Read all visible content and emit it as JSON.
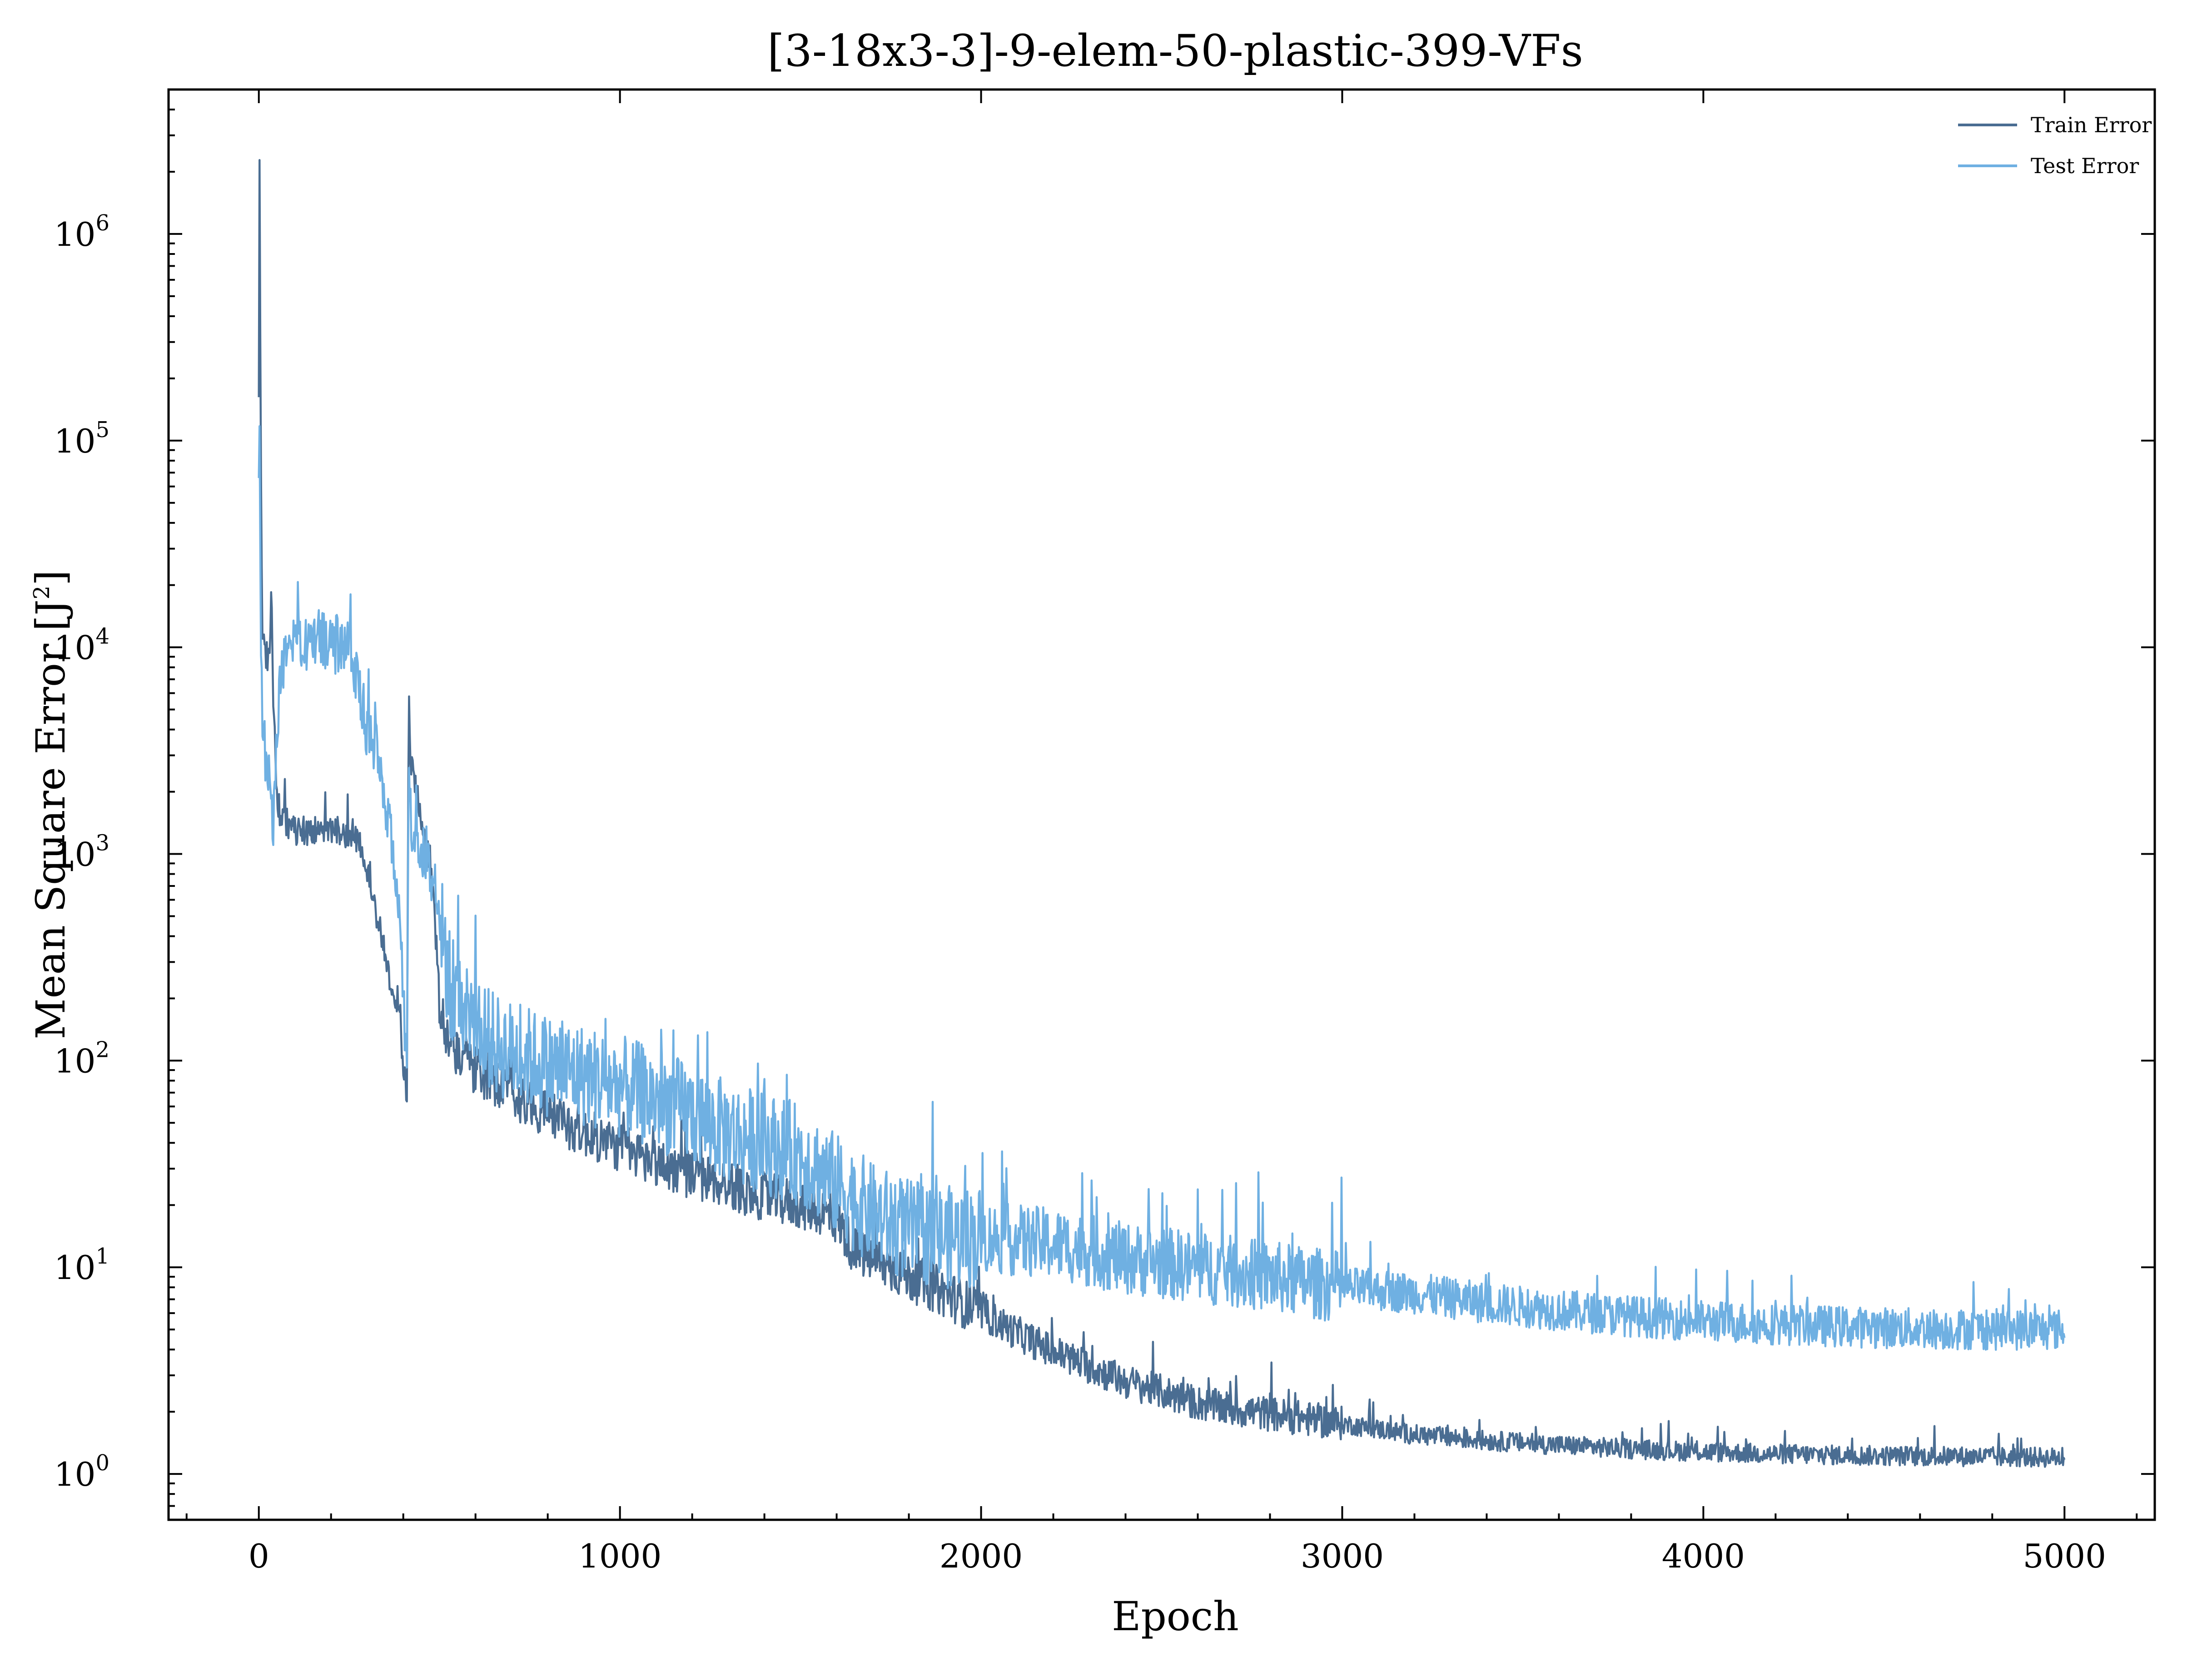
{
  "chart_data": {
    "type": "line",
    "title": "[3-18x3-3]-9-elem-50-plastic-399-VFs",
    "xlabel": "Epoch",
    "ylabel": "Mean Square Error [J",
    "ylabel_sup": "2",
    "ylabel_close": "]",
    "yscale": "log",
    "xlim": [
      -250,
      5250
    ],
    "ylim": [
      0.6,
      5000000
    ],
    "grid": false,
    "legend_position": "top-right",
    "xticks": [
      {
        "value": 0,
        "label": "0"
      },
      {
        "value": 1000,
        "label": "1000"
      },
      {
        "value": 2000,
        "label": "2000"
      },
      {
        "value": 3000,
        "label": "3000"
      },
      {
        "value": 4000,
        "label": "4000"
      },
      {
        "value": 5000,
        "label": "5000"
      }
    ],
    "yticks": [
      {
        "value": 1,
        "base": "10",
        "exp": "0"
      },
      {
        "value": 10,
        "base": "10",
        "exp": "1"
      },
      {
        "value": 100,
        "base": "10",
        "exp": "2"
      },
      {
        "value": 1000,
        "base": "10",
        "exp": "3"
      },
      {
        "value": 10000,
        "base": "10",
        "exp": "4"
      },
      {
        "value": 100000,
        "base": "10",
        "exp": "5"
      },
      {
        "value": 1000000,
        "base": "10",
        "exp": "6"
      }
    ],
    "series": [
      {
        "name": "Train Error",
        "color": "#4a6d92",
        "noise": 0.12,
        "x": [
          0,
          2,
          5,
          10,
          20,
          30,
          35,
          40,
          50,
          60,
          80,
          100,
          150,
          200,
          260,
          290,
          310,
          340,
          370,
          385,
          400,
          410,
          415,
          420,
          430,
          450,
          470,
          480,
          490,
          500,
          520,
          550,
          600,
          650,
          700,
          800,
          900,
          1000,
          1100,
          1200,
          1300,
          1400,
          1500,
          1550,
          1600,
          1650,
          1700,
          1800,
          1900,
          2000,
          2100,
          2200,
          2300,
          2400,
          2500,
          2600,
          2700,
          2800,
          2900,
          3000,
          3200,
          3400,
          3600,
          3800,
          4000,
          4200,
          4400,
          4600,
          4800,
          5000
        ],
        "y": [
          150000,
          2500000,
          100000,
          12000,
          9000,
          9000,
          18000,
          6000,
          2000,
          1500,
          1400,
          1300,
          1300,
          1300,
          1250,
          1000,
          700,
          400,
          200,
          200,
          100,
          60,
          6000,
          3000,
          2200,
          1500,
          1000,
          700,
          400,
          200,
          130,
          110,
          90,
          80,
          70,
          55,
          45,
          38,
          32,
          28,
          25,
          22,
          20,
          19,
          17,
          12,
          11,
          9,
          7.5,
          6,
          4.8,
          3.9,
          3.3,
          2.8,
          2.5,
          2.2,
          2.05,
          1.95,
          1.85,
          1.75,
          1.55,
          1.45,
          1.38,
          1.32,
          1.28,
          1.25,
          1.23,
          1.22,
          1.21,
          1.2
        ]
      },
      {
        "name": "Test Error",
        "color": "#6fb0e2",
        "noise": 0.25,
        "x": [
          0,
          2,
          5,
          10,
          20,
          30,
          40,
          50,
          60,
          80,
          100,
          150,
          200,
          250,
          280,
          300,
          330,
          360,
          380,
          400,
          410,
          415,
          420,
          430,
          450,
          470,
          490,
          500,
          520,
          550,
          600,
          650,
          700,
          800,
          900,
          1000,
          1100,
          1200,
          1300,
          1400,
          1500,
          1550,
          1600,
          1700,
          1800,
          1900,
          2000,
          2100,
          2200,
          2300,
          2400,
          2500,
          2600,
          2800,
          3000,
          3200,
          3400,
          3600,
          3800,
          4000,
          4200,
          4400,
          4600,
          4800,
          5000
        ],
        "y": [
          60000,
          150000,
          12000,
          4000,
          3000,
          2500,
          1200,
          4000,
          7000,
          9000,
          10000,
          11000,
          11000,
          9000,
          6000,
          4000,
          3000,
          1500,
          800,
          200,
          80,
          2500,
          1500,
          1200,
          1100,
          1000,
          600,
          500,
          250,
          200,
          160,
          120,
          110,
          95,
          85,
          75,
          65,
          55,
          45,
          40,
          35,
          30,
          25,
          18,
          15,
          14,
          14,
          13.5,
          13,
          12,
          11,
          10.5,
          10,
          9,
          8,
          7.5,
          6.7,
          6.2,
          5.8,
          5.5,
          5.3,
          5.15,
          5.05,
          5.0,
          5.0
        ]
      }
    ]
  }
}
